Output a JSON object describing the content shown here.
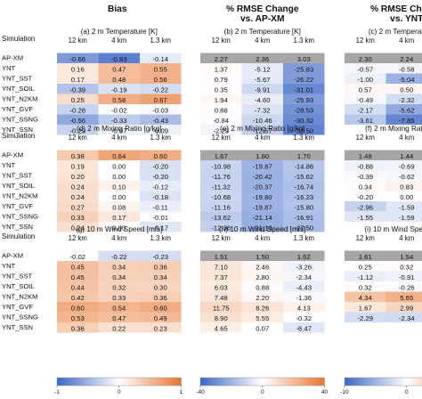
{
  "column_titles": [
    "Bias",
    "% RMSE Change\nvs. AP-XM",
    "% RMSE Change\nvs. YNT"
  ],
  "row_header_label": "Simulation",
  "resolutions": [
    "12 km",
    "4 km",
    "1.3 km"
  ],
  "simulations": [
    "AP-XM",
    "YNT",
    "YNT_SST",
    "YNT_SOIL",
    "YNT_N2KM",
    "YNT_GVF",
    "YNT_SSNG",
    "YNT_SSN"
  ],
  "colorbars": [
    {
      "ticks": [
        "-1",
        "0",
        "1"
      ],
      "range": [
        -1,
        1
      ]
    },
    {
      "ticks": [
        "-40",
        "0",
        "40"
      ],
      "range": [
        -40,
        40
      ]
    },
    {
      "ticks": [
        "-10",
        "0",
        "10"
      ],
      "range": [
        -10,
        10
      ]
    }
  ],
  "colors": {
    "negative": "#3b66c6",
    "neutral": "#ffffff",
    "positive": "#e8742e",
    "na": "#a6a6a6"
  },
  "chart_data": [
    {
      "type": "heatmap",
      "label": "(a) 2 m Temperature [K]",
      "categories": [
        "12 km",
        "4 km",
        "1.3 km"
      ],
      "scale": [
        -1,
        1
      ],
      "rows": [
        [
          -0.66,
          -0.83,
          -0.14
        ],
        [
          0.16,
          0.47,
          0.55
        ],
        [
          0.17,
          0.48,
          0.56
        ],
        [
          -0.39,
          -0.19,
          -0.22
        ],
        [
          0.25,
          0.58,
          0.67
        ],
        [
          -0.28,
          -0.02,
          -0.03
        ],
        [
          -0.56,
          -0.33,
          -0.43
        ],
        [
          -0.29,
          -0.07,
          -0.09
        ]
      ]
    },
    {
      "type": "heatmap",
      "label": "(b) 2 m Temperature [K]",
      "categories": [
        "12 km",
        "4 km",
        "1.3 km"
      ],
      "scale": [
        -40,
        40
      ],
      "rows": [
        [
          2.27,
          2.36,
          3.03
        ],
        [
          1.37,
          -5.12,
          -25.83
        ],
        [
          0.79,
          -5.67,
          -26.22
        ],
        [
          0.35,
          -9.91,
          -31.01
        ],
        [
          1.94,
          -4.6,
          -25.93
        ],
        [
          0.88,
          -7.32,
          -28.53
        ],
        [
          -0.84,
          -10.46,
          -30.32
        ],
        [
          -2.29,
          -12.57,
          -32.5
        ]
      ]
    },
    {
      "type": "heatmap",
      "label": "(c) 2 m Temperature [K]",
      "categories": [
        "12 km",
        "4 km",
        "1.3 km"
      ],
      "scale": [
        -10,
        10
      ],
      "rows": [
        [
          2.3,
          2.24,
          2.25
        ],
        [
          -0.57,
          -0.58,
          -0.63
        ],
        [
          -1.0,
          -5.04,
          -6.99
        ],
        [
          0.57,
          0.5,
          -0.14
        ],
        [
          -0.49,
          -2.32,
          -3.65
        ],
        [
          -2.17,
          -5.62,
          -6.06
        ],
        [
          -3.61,
          -7.85,
          -8.99
        ]
      ]
    },
    {
      "type": "heatmap",
      "label": "(d) 2 m Mixing Ratio [g/kg]",
      "categories": [
        "12 km",
        "4 km",
        "1.3 km"
      ],
      "scale": [
        -1,
        1
      ],
      "rows": [
        [
          0.38,
          0.64,
          0.6
        ],
        [
          0.19,
          0.0,
          -0.2
        ],
        [
          0.2,
          0.0,
          -0.2
        ],
        [
          0.24,
          0.1,
          -0.12
        ],
        [
          0.24,
          0.0,
          -0.18
        ],
        [
          0.27,
          0.08,
          -0.11
        ],
        [
          0.33,
          0.17,
          -0.01
        ],
        [
          0.24,
          0.0,
          -0.17
        ]
      ]
    },
    {
      "type": "heatmap",
      "label": "(e) 2 m Mixing Ratio [g/kg]",
      "categories": [
        "12 km",
        "4 km",
        "1.3 km"
      ],
      "scale": [
        -40,
        40
      ],
      "rows": [
        [
          1.67,
          1.8,
          1.7
        ],
        [
          -10.98,
          -19.87,
          -14.86
        ],
        [
          -11.76,
          -20.42,
          -15.62
        ],
        [
          -11.32,
          -20.37,
          -16.74
        ],
        [
          -10.68,
          -19.8,
          -16.23
        ],
        [
          -11.16,
          -19.87,
          -15.8
        ],
        [
          -13.62,
          -21.14,
          -16.91
        ],
        [
          -12.36,
          -21.14,
          -17.5
        ]
      ]
    },
    {
      "type": "heatmap",
      "label": "(f) 2 m Mixing Ratio [g/kg]",
      "categories": [
        "12 km",
        "4 km",
        "1.3 km"
      ],
      "scale": [
        -10,
        10
      ],
      "rows": [
        [
          1.48,
          1.44,
          1.45
        ],
        [
          -0.88,
          -0.69,
          -0.9
        ],
        [
          -0.39,
          -0.62,
          -2.21
        ],
        [
          0.34,
          0.83,
          1.38
        ],
        [
          -0.2,
          0.0,
          -1.13
        ],
        [
          -2.96,
          -1.59,
          -2.41
        ],
        [
          -1.55,
          -1.59,
          -3.14
        ]
      ]
    },
    {
      "type": "heatmap",
      "label": "(g) 10 m Wind Speed [m/s]",
      "categories": [
        "12 km",
        "4 km",
        "1.3 km"
      ],
      "scale": [
        -1,
        1
      ],
      "rows": [
        [
          -0.02,
          -0.22,
          -0.23
        ],
        [
          0.45,
          0.34,
          0.36
        ],
        [
          0.45,
          0.34,
          0.34
        ],
        [
          0.44,
          0.32,
          0.3
        ],
        [
          0.42,
          0.33,
          0.36
        ],
        [
          0.6,
          0.54,
          0.6
        ],
        [
          0.53,
          0.47,
          0.49
        ],
        [
          0.36,
          0.22,
          0.23
        ]
      ]
    },
    {
      "type": "heatmap",
      "label": "(h) 10 m Wind Speed [m/s]",
      "categories": [
        "12 km",
        "4 km",
        "1.3 km"
      ],
      "scale": [
        -40,
        40
      ],
      "rows": [
        [
          1.51,
          1.5,
          1.62
        ],
        [
          7.1,
          2.46,
          -3.26
        ],
        [
          7.37,
          2.8,
          -2.34
        ],
        [
          6.03,
          0.88,
          -4.43
        ],
        [
          7.48,
          2.2,
          -1.36
        ],
        [
          11.75,
          8.26,
          4.13
        ],
        [
          8.9,
          5.55,
          -0.32
        ],
        [
          4.65,
          0.07,
          -6.47
        ]
      ]
    },
    {
      "type": "heatmap",
      "label": "(i) 10 m Wind Speed [m/s]",
      "categories": [
        "12 km",
        "4 km",
        "1.3 km"
      ],
      "scale": [
        -10,
        10
      ],
      "rows": [
        [
          1.61,
          1.54,
          1.57
        ],
        [
          0.25,
          0.32,
          0.95
        ],
        [
          -1.12,
          -0.91,
          -2.21
        ],
        [
          0.32,
          -0.26,
          0.01
        ],
        [
          4.34,
          5.65,
          7.64
        ],
        [
          1.67,
          2.99,
          3.18
        ],
        [
          -2.29,
          -2.34,
          -1.8
        ]
      ]
    }
  ]
}
